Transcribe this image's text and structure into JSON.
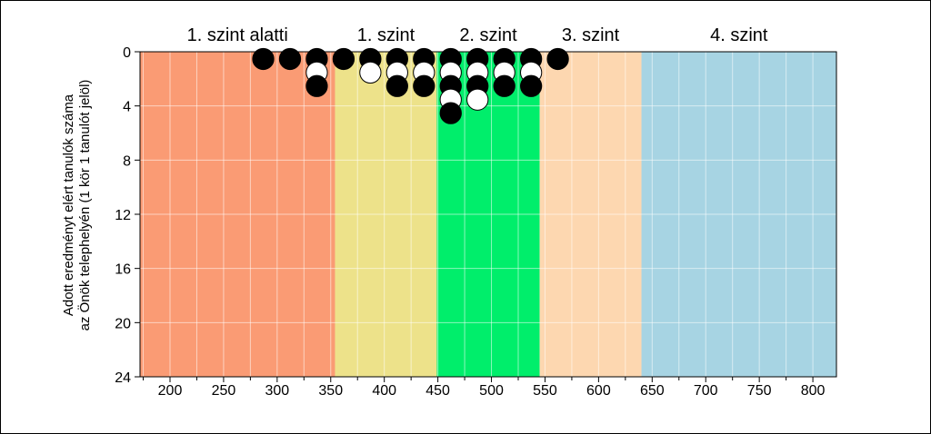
{
  "chart_data": {
    "type": "scatter",
    "ylabel_line1": "Adott eredményt elért tanulók száma",
    "ylabel_line2": "az Önök telephelyén (1 kör 1 tanulót jelöl)",
    "xlim": [
      172,
      822
    ],
    "ylim": [
      0,
      24
    ],
    "y_inverted": true,
    "x_ticks": [
      200,
      250,
      300,
      350,
      400,
      450,
      500,
      550,
      600,
      650,
      700,
      750,
      800
    ],
    "x_minor_step": 25,
    "y_ticks": [
      0,
      4,
      8,
      12,
      16,
      20,
      24
    ],
    "grid": true,
    "bands": [
      {
        "label": "1. szint alatti",
        "from": 172,
        "to": 354,
        "color": "#fa9b74"
      },
      {
        "label": "1. szint",
        "from": 354,
        "to": 449,
        "color": "#ede28a"
      },
      {
        "label": "2. szint",
        "from": 449,
        "to": 545,
        "color": "#00ee6b"
      },
      {
        "label": "3. szint",
        "from": 545,
        "to": 640,
        "color": "#fdd7b0"
      },
      {
        "label": "4. szint",
        "from": 640,
        "to": 822,
        "color": "#a7d4e3"
      }
    ],
    "points": [
      {
        "x": 287,
        "y": 1,
        "fill": "black"
      },
      {
        "x": 312,
        "y": 1,
        "fill": "black"
      },
      {
        "x": 337,
        "y": 1,
        "fill": "black"
      },
      {
        "x": 337,
        "y": 2,
        "fill": "white"
      },
      {
        "x": 337,
        "y": 3,
        "fill": "black"
      },
      {
        "x": 362,
        "y": 1,
        "fill": "black"
      },
      {
        "x": 387,
        "y": 1,
        "fill": "black"
      },
      {
        "x": 387,
        "y": 2,
        "fill": "white"
      },
      {
        "x": 412,
        "y": 1,
        "fill": "black"
      },
      {
        "x": 412,
        "y": 2,
        "fill": "white"
      },
      {
        "x": 412,
        "y": 3,
        "fill": "black"
      },
      {
        "x": 437,
        "y": 1,
        "fill": "black"
      },
      {
        "x": 437,
        "y": 2,
        "fill": "white"
      },
      {
        "x": 437,
        "y": 3,
        "fill": "black"
      },
      {
        "x": 462,
        "y": 1,
        "fill": "black"
      },
      {
        "x": 462,
        "y": 2,
        "fill": "white"
      },
      {
        "x": 462,
        "y": 3,
        "fill": "black"
      },
      {
        "x": 462,
        "y": 4,
        "fill": "white"
      },
      {
        "x": 462,
        "y": 5,
        "fill": "black"
      },
      {
        "x": 487,
        "y": 1,
        "fill": "black"
      },
      {
        "x": 487,
        "y": 2,
        "fill": "white"
      },
      {
        "x": 487,
        "y": 3,
        "fill": "black"
      },
      {
        "x": 487,
        "y": 4,
        "fill": "white"
      },
      {
        "x": 512,
        "y": 1,
        "fill": "black"
      },
      {
        "x": 512,
        "y": 2,
        "fill": "white"
      },
      {
        "x": 512,
        "y": 3,
        "fill": "black"
      },
      {
        "x": 537,
        "y": 1,
        "fill": "black"
      },
      {
        "x": 537,
        "y": 2,
        "fill": "white"
      },
      {
        "x": 537,
        "y": 3,
        "fill": "black"
      },
      {
        "x": 562,
        "y": 1,
        "fill": "black"
      }
    ]
  }
}
